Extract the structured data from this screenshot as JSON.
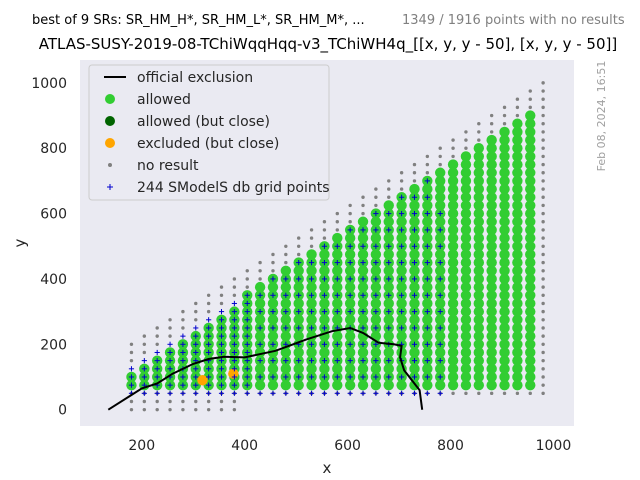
{
  "header": {
    "left_note": "best of 9 SRs: SR_HM_H*, SR_HM_L*, SR_HM_M*, ...",
    "right_note": "1349 / 1916 points with no results"
  },
  "timestamp": "Feb 08, 2024, 16:51",
  "colors": {
    "plot_bg": "#eaeaf2",
    "allowed": "#32cd32",
    "allowed_close": "#006400",
    "excluded_close": "#ffa500",
    "no_result": "#808080",
    "grid_point": "#0000cd",
    "exclusion_line": "#000000"
  },
  "chart_data": {
    "type": "scatter",
    "title": "ATLAS-SUSY-2019-08-TChiWqqHqq-v3_TChiWH4q_[[x, y, y - 50], [x, y, y - 50]]",
    "xlabel": "x",
    "ylabel": "y",
    "xlim": [
      80,
      1040
    ],
    "ylim": [
      -50,
      1070
    ],
    "xticks": [
      200,
      400,
      600,
      800,
      1000
    ],
    "yticks": [
      0,
      200,
      400,
      600,
      800,
      1000
    ],
    "grid": false,
    "legend_position": "top-left",
    "legend": [
      {
        "label": "official exclusion",
        "marker": "line",
        "color": "#000000"
      },
      {
        "label": "allowed",
        "marker": "circle",
        "color": "#32cd32"
      },
      {
        "label": "allowed (but close)",
        "marker": "circle",
        "color": "#006400"
      },
      {
        "label": "excluded (but close)",
        "marker": "circle",
        "color": "#ffa500"
      },
      {
        "label": "no result",
        "marker": "dot",
        "color": "#808080"
      },
      {
        "label": "244 SModelS db grid points",
        "marker": "plus",
        "color": "#0000cd"
      }
    ],
    "official_exclusion": [
      [
        135,
        0
      ],
      [
        175,
        40
      ],
      [
        200,
        65
      ],
      [
        230,
        80
      ],
      [
        260,
        110
      ],
      [
        300,
        140
      ],
      [
        330,
        155
      ],
      [
        360,
        162
      ],
      [
        400,
        160
      ],
      [
        460,
        180
      ],
      [
        520,
        215
      ],
      [
        570,
        240
      ],
      [
        605,
        250
      ],
      [
        630,
        235
      ],
      [
        660,
        205
      ],
      [
        690,
        200
      ],
      [
        705,
        195
      ],
      [
        702,
        160
      ],
      [
        710,
        120
      ],
      [
        725,
        90
      ],
      [
        740,
        60
      ],
      [
        745,
        0
      ]
    ],
    "allowed_region": {
      "x": [
        180,
        975
      ],
      "y_min": 75,
      "y_max_rule": "y <= x - 50",
      "x_step": 25,
      "y_step": 25
    },
    "excluded_close_points": [
      [
        318,
        90
      ],
      [
        378,
        110
      ]
    ],
    "no_result_region": {
      "x": [
        180,
        1000
      ],
      "y_max_rule": "y <= x + 25",
      "x_step": 25,
      "y_step": 25
    },
    "smodels_grid_points": {
      "x": [
        180,
        1000
      ],
      "x_step": 25,
      "y_step_low": 25,
      "y_step_high": 50,
      "count": 244
    }
  }
}
